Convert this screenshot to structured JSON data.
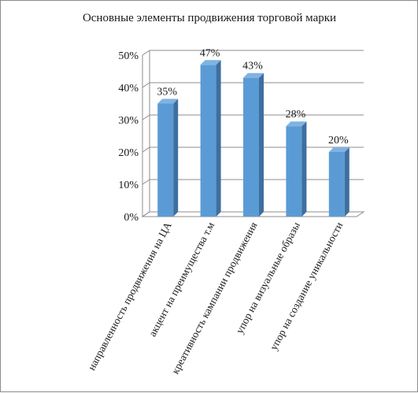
{
  "chart_data": {
    "type": "bar",
    "title": "Основные элементы продвижения торговой марки",
    "categories": [
      "направленность продвижения на ЦА",
      "акцент на преимущества т.м",
      "креативность кампании продвижения",
      "упор на визуальные образы",
      "упор на создание уникальности"
    ],
    "values": [
      35,
      47,
      43,
      28,
      20
    ],
    "data_labels": [
      "35%",
      "47%",
      "43%",
      "28%",
      "20%"
    ],
    "y_ticks": [
      "0%",
      "10%",
      "20%",
      "30%",
      "40%",
      "50%"
    ],
    "ylim": [
      0,
      50
    ],
    "grid": true,
    "legend": "none",
    "colors": {
      "bar_front": "#5b9bd5",
      "bar_side": "#3e6f9f",
      "bar_top": "#7fb3e3",
      "grid": "#8c8c8c"
    }
  }
}
